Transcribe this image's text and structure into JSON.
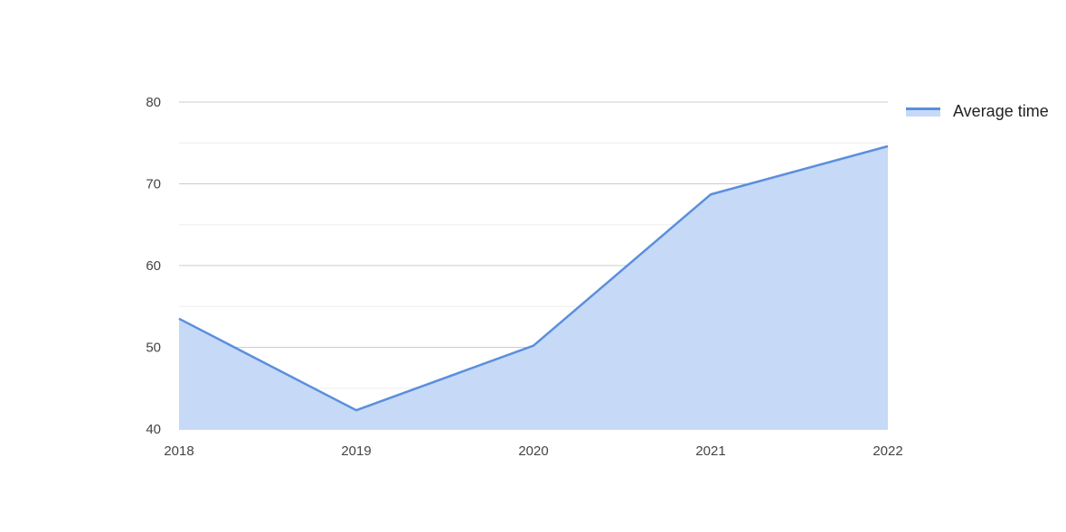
{
  "chart_data": {
    "type": "area",
    "x": [
      "2018",
      "2019",
      "2020",
      "2021",
      "2022"
    ],
    "series": [
      {
        "name": "Average time",
        "values": [
          53.5,
          42.3,
          50.2,
          68.7,
          74.6
        ],
        "line_color": "#5b8fdc",
        "fill_color": "#c6d9f7"
      }
    ],
    "title": "",
    "xlabel": "",
    "ylabel": "",
    "ylim": [
      40,
      80
    ],
    "yticks": [
      "40",
      "50",
      "60",
      "70",
      "80"
    ],
    "grid": true,
    "legend_position": "right"
  }
}
